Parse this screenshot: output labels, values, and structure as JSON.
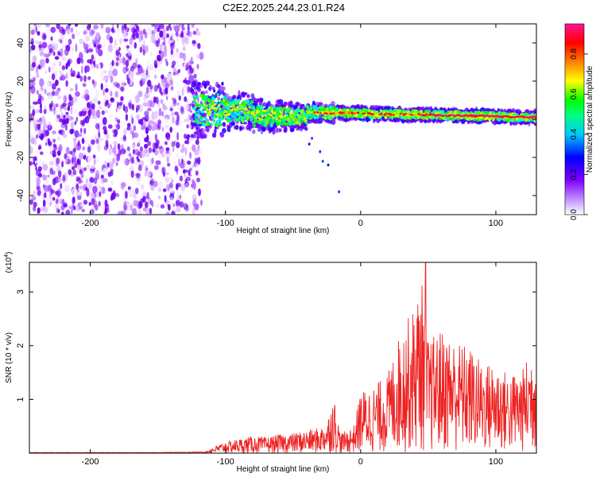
{
  "chart_data": [
    {
      "type": "heatmap",
      "title": "C2E2.2025.244.23.01.R24",
      "xlabel": "Height of straight line (km)",
      "ylabel": "Frequency (Hz)",
      "xlim": [
        -245,
        130
      ],
      "ylim": [
        -50,
        50
      ],
      "xticks": [
        -200,
        -100,
        0,
        100
      ],
      "xtick_labels": [
        "-200",
        "-100",
        "0",
        "100"
      ],
      "yticks": [
        -40,
        -20,
        0,
        20,
        40
      ],
      "ytick_labels": [
        "-40",
        "-20",
        "0",
        "20",
        "40"
      ],
      "colorbar": {
        "label": "Normalized spectral amplitude",
        "range": [
          0,
          0.95
        ],
        "ticks": [
          0.0,
          0.2,
          0.4,
          0.6,
          0.8
        ],
        "tick_labels": [
          "0.0",
          "0.2",
          "0.4",
          "0.6",
          "0.8"
        ],
        "colormap": [
          "#ffffff",
          "#8000ff",
          "#0000ff",
          "#00ffff",
          "#00ff00",
          "#ffff00",
          "#ff8000",
          "#ff0000",
          "#ff1493"
        ]
      },
      "regions": [
        {
          "name": "noise",
          "x_range": [
            -245,
            -120
          ],
          "freq_range": [
            -50,
            50
          ],
          "amplitude": [
            0.0,
            0.15
          ]
        },
        {
          "name": "signal-band",
          "x_range": [
            -125,
            130
          ],
          "center_freq_start": 5,
          "center_freq_end": 1,
          "amplitude_peak": 0.95
        }
      ]
    },
    {
      "type": "line",
      "xlabel": "Height of straight line (km)",
      "ylabel": "SNR (10 * v/v)",
      "y_scale_label": "(x10",
      "y_scale_exp": "4",
      "xlim": [
        -245,
        130
      ],
      "ylim": [
        0,
        3.55
      ],
      "xticks": [
        -200,
        -100,
        0,
        100
      ],
      "xtick_labels": [
        "-200",
        "-100",
        "0",
        "100"
      ],
      "yticks": [
        1,
        2,
        3
      ],
      "ytick_labels": [
        "1",
        "2",
        "3"
      ],
      "series": [
        {
          "name": "SNR",
          "color": "#ee2222",
          "x": [
            -245,
            -200,
            -150,
            -115,
            -110,
            -100,
            -90,
            -80,
            -70,
            -60,
            -50,
            -40,
            -30,
            -25,
            -20,
            -15,
            -10,
            -5,
            0,
            10,
            20,
            25,
            30,
            40,
            45,
            50,
            60,
            70,
            80,
            90,
            100,
            110,
            120,
            125,
            130
          ],
          "values": [
            0.01,
            0.01,
            0.01,
            0.02,
            0.1,
            0.2,
            0.25,
            0.3,
            0.28,
            0.33,
            0.35,
            0.4,
            0.45,
            0.55,
            1.05,
            0.35,
            0.4,
            0.5,
            1.1,
            1.2,
            1.4,
            1.8,
            2.2,
            2.6,
            3.1,
            2.0,
            2.2,
            2.0,
            1.9,
            1.6,
            1.6,
            1.4,
            1.5,
            1.8,
            1.95
          ],
          "peak": {
            "x": 48,
            "y": 3.55
          }
        }
      ]
    }
  ]
}
